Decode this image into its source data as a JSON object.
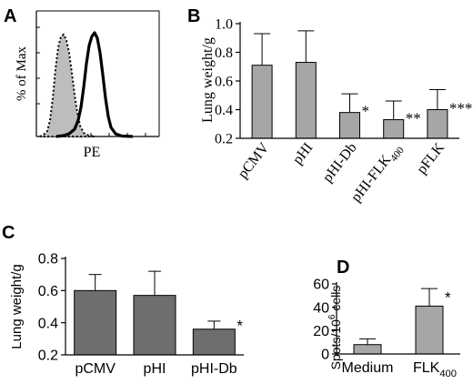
{
  "chart_data": [
    {
      "panel": "A",
      "type": "histogram",
      "xlabel": "PE",
      "ylabel": "% of Max",
      "series": [
        {
          "style": "dotted",
          "fill": "#bdbdbd"
        },
        {
          "style": "solid-thick",
          "fill": "none"
        }
      ]
    },
    {
      "panel": "B",
      "type": "bar",
      "ylabel": "Lung weight/g",
      "ylim": [
        0.2,
        1.0
      ],
      "yticks": [
        "0.2",
        "0.4",
        "0.6",
        "0.8",
        "1.0"
      ],
      "categories": [
        {
          "text": "pCMV",
          "sub": ""
        },
        {
          "text": "pHI",
          "sub": ""
        },
        {
          "text": "pHI-Db",
          "sub": ""
        },
        {
          "text": "pHI-FLK",
          "sub": "400"
        },
        {
          "text": "pFLK",
          "sub": ""
        }
      ],
      "values": [
        0.71,
        0.73,
        0.38,
        0.33,
        0.4
      ],
      "errors": [
        0.22,
        0.22,
        0.13,
        0.13,
        0.14
      ],
      "annotations": [
        "",
        "",
        "*",
        "**",
        "***"
      ],
      "bar_color": "#a6a6a6"
    },
    {
      "panel": "C",
      "type": "bar",
      "ylabel": "Lung weight/g",
      "ylim": [
        0.2,
        0.8
      ],
      "yticks": [
        "0.2",
        "0.4",
        "0.6",
        "0.8"
      ],
      "categories": [
        "pCMV",
        "pHI",
        "pHI-Db"
      ],
      "values": [
        0.6,
        0.57,
        0.36
      ],
      "errors": [
        0.1,
        0.15,
        0.05
      ],
      "annotations": [
        "",
        "",
        "*"
      ],
      "bar_color": "#6e6e6e"
    },
    {
      "panel": "D",
      "type": "bar",
      "ylabel_main": "Spots/10",
      "ylabel_sup": "6",
      "ylabel_tail": " cells",
      "ylim": [
        0,
        60
      ],
      "yticks": [
        "0",
        "20",
        "40",
        "60"
      ],
      "categories": [
        {
          "text": "Medium",
          "sub": ""
        },
        {
          "text": "FLK",
          "sub": "400"
        }
      ],
      "values": [
        8,
        41
      ],
      "errors": [
        5,
        15
      ],
      "annotations": [
        "",
        "*"
      ],
      "bar_color": "#a6a6a6"
    }
  ]
}
